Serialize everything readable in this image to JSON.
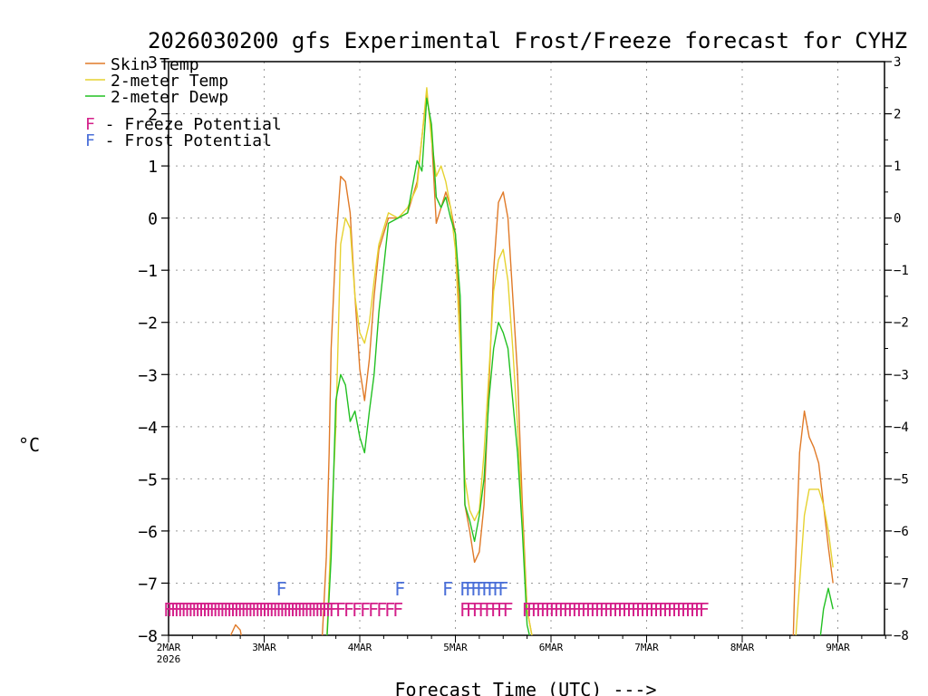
{
  "chart_data": {
    "type": "line",
    "title": "2026030200 gfs Experimental Frost/Freeze forecast for CYHZ",
    "ylabel": "°C",
    "xlabel": "Forecast Time (UTC) --->",
    "ylim": [
      -8,
      3
    ],
    "xlim": [
      0,
      7.5
    ],
    "yticks": [
      -8,
      -7,
      -6,
      -5,
      -4,
      -3,
      -2,
      -1,
      0,
      1,
      2,
      3
    ],
    "ytick_labels_left": [
      "−8",
      "−7",
      "−6",
      "−5",
      "−4",
      "−3",
      "−2",
      "−1",
      "0",
      "1",
      "2",
      "3"
    ],
    "ytick_labels_right": [
      "−8",
      "−7",
      "−6",
      "−5",
      "−4",
      "−3",
      "−2",
      "−1",
      "0",
      "1",
      "2",
      "3"
    ],
    "xticks": [
      {
        "day": 0,
        "label": "2MAR",
        "sublabel": "2026"
      },
      {
        "day": 1,
        "label": "3MAR",
        "sublabel": ""
      },
      {
        "day": 2,
        "label": "4MAR",
        "sublabel": ""
      },
      {
        "day": 3,
        "label": "5MAR",
        "sublabel": ""
      },
      {
        "day": 4,
        "label": "6MAR",
        "sublabel": ""
      },
      {
        "day": 5,
        "label": "7MAR",
        "sublabel": ""
      },
      {
        "day": 6,
        "label": "8MAR",
        "sublabel": ""
      },
      {
        "day": 7,
        "label": "9MAR",
        "sublabel": ""
      }
    ],
    "legend": {
      "position": "top-left",
      "entries": [
        {
          "label": "Skin Temp",
          "color": "#e07a28"
        },
        {
          "label": "2-meter Temp",
          "color": "#e6d230"
        },
        {
          "label": "2-meter Dewp",
          "color": "#22c022"
        }
      ],
      "markers": [
        {
          "symbol": "F",
          "text": " - Freeze Potential",
          "color": "#d4208a"
        },
        {
          "symbol": "F",
          "text": " - Frost Potential",
          "color": "#4a6fd8"
        }
      ]
    },
    "series": [
      {
        "name": "Skin Temp",
        "color": "#e07a28",
        "x": [
          0.0,
          0.02,
          0.6,
          0.65,
          0.7,
          0.75,
          0.78,
          0.8,
          0.82,
          1.6,
          1.65,
          1.68,
          1.7,
          1.75,
          1.8,
          1.85,
          1.9,
          1.95,
          2.0,
          2.05,
          2.1,
          2.15,
          2.2,
          2.3,
          2.4,
          2.5,
          2.6,
          2.7,
          2.75,
          2.8,
          2.85,
          2.9,
          2.95,
          3.0,
          3.05,
          3.1,
          3.15,
          3.2,
          3.25,
          3.3,
          3.35,
          3.4,
          3.45,
          3.5,
          3.55,
          3.6,
          3.65,
          3.7,
          3.75,
          3.8,
          3.85,
          3.9,
          3.92,
          6.53,
          6.55,
          6.6,
          6.65,
          6.7,
          6.75,
          6.8,
          6.85,
          6.9,
          6.95
        ],
        "values": [
          -8.0,
          -8.3,
          -8.3,
          -8.0,
          -7.8,
          -7.9,
          -8.2,
          -8.3,
          -8.3,
          -8.3,
          -6.5,
          -4.5,
          -2.5,
          -0.5,
          0.8,
          0.7,
          0.1,
          -1.5,
          -2.9,
          -3.5,
          -2.7,
          -1.5,
          -0.6,
          0.0,
          0.0,
          0.1,
          0.7,
          2.4,
          1.6,
          -0.1,
          0.2,
          0.5,
          0.2,
          -0.3,
          -2.0,
          -5.5,
          -6.0,
          -6.6,
          -6.4,
          -5.5,
          -3.3,
          -1.0,
          0.3,
          0.5,
          0.0,
          -1.5,
          -3.0,
          -5.5,
          -7.5,
          -8.0,
          -8.2,
          -8.3,
          -8.3,
          -8.3,
          -7.0,
          -4.5,
          -3.7,
          -4.2,
          -4.4,
          -4.7,
          -5.5,
          -6.3,
          -7.0
        ],
        "note": "x = days after 2MAR 00Z; segments below -8 are clipped at the axis"
      },
      {
        "name": "2-meter Temp",
        "color": "#e6d230",
        "x": [
          1.65,
          1.7,
          1.75,
          1.8,
          1.85,
          1.9,
          1.95,
          2.0,
          2.05,
          2.1,
          2.15,
          2.2,
          2.3,
          2.4,
          2.5,
          2.6,
          2.7,
          2.75,
          2.8,
          2.85,
          2.9,
          2.95,
          3.0,
          3.05,
          3.1,
          3.15,
          3.2,
          3.25,
          3.3,
          3.35,
          3.4,
          3.45,
          3.5,
          3.55,
          3.6,
          3.65,
          3.7,
          3.75,
          3.8,
          3.85,
          3.9,
          3.95,
          4.0,
          4.05,
          4.1,
          4.15,
          4.2,
          6.55,
          6.6,
          6.65,
          6.7,
          6.75,
          6.8,
          6.85,
          6.9,
          6.95
        ],
        "values": [
          -8.3,
          -6.0,
          -4.0,
          -0.5,
          0.0,
          -0.2,
          -1.5,
          -2.2,
          -2.4,
          -2.0,
          -1.2,
          -0.5,
          0.1,
          0.0,
          0.2,
          0.6,
          2.5,
          1.5,
          0.8,
          1.0,
          0.7,
          0.2,
          -0.6,
          -2.5,
          -5.0,
          -5.6,
          -5.8,
          -5.6,
          -4.5,
          -3.0,
          -1.4,
          -0.8,
          -0.6,
          -1.2,
          -2.5,
          -4.0,
          -5.8,
          -7.5,
          -8.0,
          -8.2,
          -8.3,
          -8.3,
          -8.3,
          -8.3,
          -8.3,
          -8.3,
          -8.3,
          -8.3,
          -7.0,
          -5.7,
          -5.2,
          -5.2,
          -5.2,
          -5.5,
          -6.0,
          -6.7
        ]
      },
      {
        "name": "2-meter Dewp",
        "color": "#22c022",
        "x": [
          1.65,
          1.7,
          1.75,
          1.8,
          1.85,
          1.9,
          1.95,
          2.0,
          2.05,
          2.1,
          2.15,
          2.2,
          2.3,
          2.4,
          2.5,
          2.6,
          2.65,
          2.7,
          2.75,
          2.8,
          2.85,
          2.9,
          2.95,
          3.0,
          3.05,
          3.1,
          3.15,
          3.2,
          3.25,
          3.3,
          3.35,
          3.4,
          3.45,
          3.5,
          3.55,
          3.6,
          3.65,
          3.7,
          3.75,
          3.8,
          3.85,
          6.8,
          6.85,
          6.9,
          6.95
        ],
        "values": [
          -8.3,
          -6.5,
          -3.5,
          -3.0,
          -3.2,
          -3.9,
          -3.7,
          -4.2,
          -4.5,
          -3.7,
          -3.0,
          -1.8,
          -0.1,
          0.0,
          0.1,
          1.1,
          0.9,
          2.3,
          1.8,
          0.4,
          0.2,
          0.4,
          0.0,
          -0.3,
          -1.5,
          -5.5,
          -5.8,
          -6.2,
          -5.7,
          -5.0,
          -3.5,
          -2.5,
          -2.0,
          -2.2,
          -2.5,
          -3.5,
          -4.5,
          -6.0,
          -7.8,
          -8.2,
          -8.3,
          -8.3,
          -7.5,
          -7.1,
          -7.5
        ]
      }
    ],
    "markers": {
      "freeze": {
        "label": "F",
        "color": "#d4208a",
        "y": -7.5,
        "groups": [
          {
            "start": 0.0,
            "end": 1.73,
            "count": 48
          },
          {
            "start": 1.8,
            "end": 2.4,
            "count": 8
          },
          {
            "start": 3.1,
            "end": 3.55,
            "count": 8
          },
          {
            "start": 3.75,
            "end": 5.6,
            "count": 40
          }
        ]
      },
      "frost": {
        "label": "F",
        "color": "#4a6fd8",
        "y": -7.1,
        "groups": [
          {
            "start": 1.18,
            "end": 1.18,
            "count": 1
          },
          {
            "start": 2.42,
            "end": 2.42,
            "count": 1
          },
          {
            "start": 2.92,
            "end": 2.92,
            "count": 1
          },
          {
            "start": 3.1,
            "end": 3.5,
            "count": 8
          }
        ]
      }
    }
  }
}
